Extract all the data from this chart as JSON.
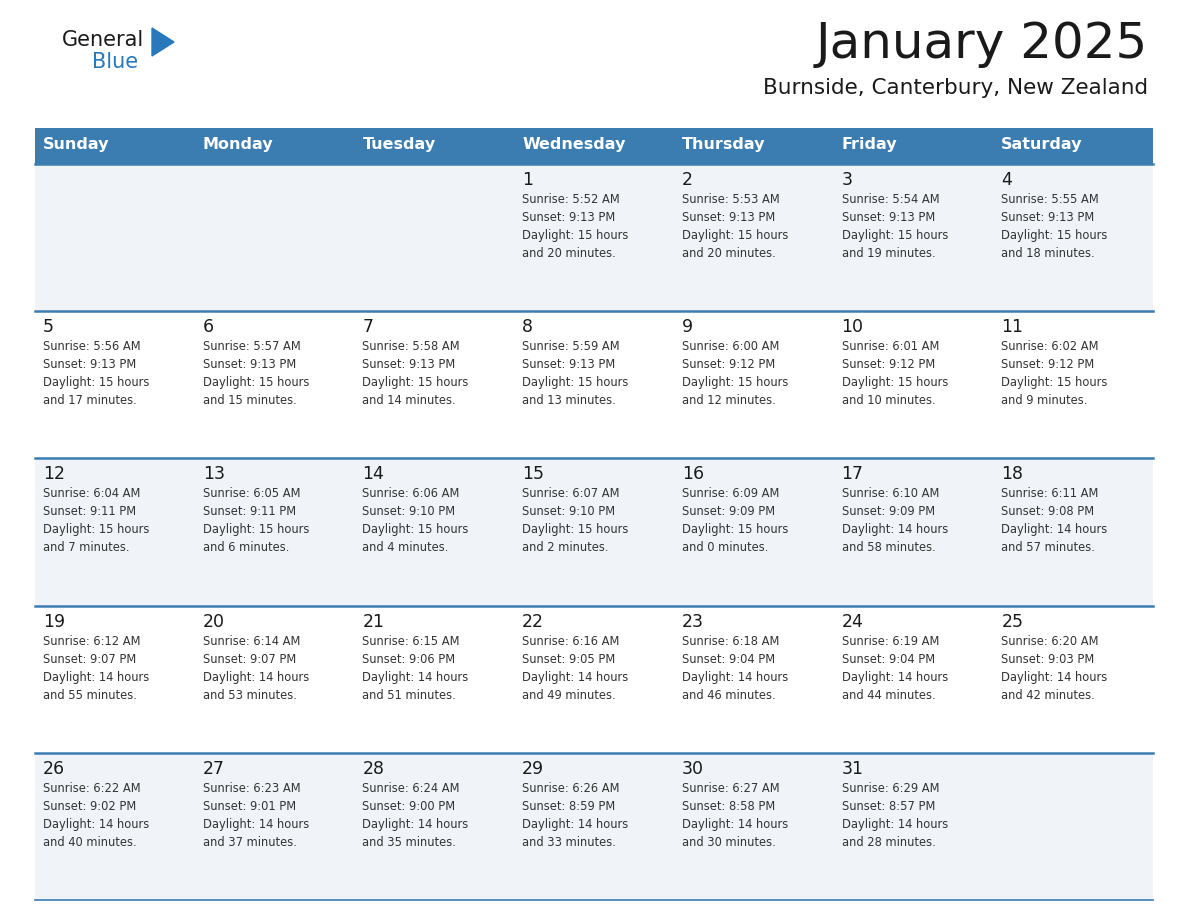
{
  "title": "January 2025",
  "subtitle": "Burnside, Canterbury, New Zealand",
  "days_of_week": [
    "Sunday",
    "Monday",
    "Tuesday",
    "Wednesday",
    "Thursday",
    "Friday",
    "Saturday"
  ],
  "header_bg": "#3c7db1",
  "header_text": "#ffffff",
  "row_bg_even": "#f0f4f8",
  "row_bg_odd": "#ffffff",
  "cell_text_color": "#333333",
  "day_num_color": "#1a1a1a",
  "border_color": "#3c7db1",
  "logo_general_color": "#1a1a1a",
  "logo_blue_color": "#2878be",
  "calendar_data": [
    [
      {
        "day": null,
        "info": null
      },
      {
        "day": null,
        "info": null
      },
      {
        "day": null,
        "info": null
      },
      {
        "day": "1",
        "info": "Sunrise: 5:52 AM\nSunset: 9:13 PM\nDaylight: 15 hours\nand 20 minutes."
      },
      {
        "day": "2",
        "info": "Sunrise: 5:53 AM\nSunset: 9:13 PM\nDaylight: 15 hours\nand 20 minutes."
      },
      {
        "day": "3",
        "info": "Sunrise: 5:54 AM\nSunset: 9:13 PM\nDaylight: 15 hours\nand 19 minutes."
      },
      {
        "day": "4",
        "info": "Sunrise: 5:55 AM\nSunset: 9:13 PM\nDaylight: 15 hours\nand 18 minutes."
      }
    ],
    [
      {
        "day": "5",
        "info": "Sunrise: 5:56 AM\nSunset: 9:13 PM\nDaylight: 15 hours\nand 17 minutes."
      },
      {
        "day": "6",
        "info": "Sunrise: 5:57 AM\nSunset: 9:13 PM\nDaylight: 15 hours\nand 15 minutes."
      },
      {
        "day": "7",
        "info": "Sunrise: 5:58 AM\nSunset: 9:13 PM\nDaylight: 15 hours\nand 14 minutes."
      },
      {
        "day": "8",
        "info": "Sunrise: 5:59 AM\nSunset: 9:13 PM\nDaylight: 15 hours\nand 13 minutes."
      },
      {
        "day": "9",
        "info": "Sunrise: 6:00 AM\nSunset: 9:12 PM\nDaylight: 15 hours\nand 12 minutes."
      },
      {
        "day": "10",
        "info": "Sunrise: 6:01 AM\nSunset: 9:12 PM\nDaylight: 15 hours\nand 10 minutes."
      },
      {
        "day": "11",
        "info": "Sunrise: 6:02 AM\nSunset: 9:12 PM\nDaylight: 15 hours\nand 9 minutes."
      }
    ],
    [
      {
        "day": "12",
        "info": "Sunrise: 6:04 AM\nSunset: 9:11 PM\nDaylight: 15 hours\nand 7 minutes."
      },
      {
        "day": "13",
        "info": "Sunrise: 6:05 AM\nSunset: 9:11 PM\nDaylight: 15 hours\nand 6 minutes."
      },
      {
        "day": "14",
        "info": "Sunrise: 6:06 AM\nSunset: 9:10 PM\nDaylight: 15 hours\nand 4 minutes."
      },
      {
        "day": "15",
        "info": "Sunrise: 6:07 AM\nSunset: 9:10 PM\nDaylight: 15 hours\nand 2 minutes."
      },
      {
        "day": "16",
        "info": "Sunrise: 6:09 AM\nSunset: 9:09 PM\nDaylight: 15 hours\nand 0 minutes."
      },
      {
        "day": "17",
        "info": "Sunrise: 6:10 AM\nSunset: 9:09 PM\nDaylight: 14 hours\nand 58 minutes."
      },
      {
        "day": "18",
        "info": "Sunrise: 6:11 AM\nSunset: 9:08 PM\nDaylight: 14 hours\nand 57 minutes."
      }
    ],
    [
      {
        "day": "19",
        "info": "Sunrise: 6:12 AM\nSunset: 9:07 PM\nDaylight: 14 hours\nand 55 minutes."
      },
      {
        "day": "20",
        "info": "Sunrise: 6:14 AM\nSunset: 9:07 PM\nDaylight: 14 hours\nand 53 minutes."
      },
      {
        "day": "21",
        "info": "Sunrise: 6:15 AM\nSunset: 9:06 PM\nDaylight: 14 hours\nand 51 minutes."
      },
      {
        "day": "22",
        "info": "Sunrise: 6:16 AM\nSunset: 9:05 PM\nDaylight: 14 hours\nand 49 minutes."
      },
      {
        "day": "23",
        "info": "Sunrise: 6:18 AM\nSunset: 9:04 PM\nDaylight: 14 hours\nand 46 minutes."
      },
      {
        "day": "24",
        "info": "Sunrise: 6:19 AM\nSunset: 9:04 PM\nDaylight: 14 hours\nand 44 minutes."
      },
      {
        "day": "25",
        "info": "Sunrise: 6:20 AM\nSunset: 9:03 PM\nDaylight: 14 hours\nand 42 minutes."
      }
    ],
    [
      {
        "day": "26",
        "info": "Sunrise: 6:22 AM\nSunset: 9:02 PM\nDaylight: 14 hours\nand 40 minutes."
      },
      {
        "day": "27",
        "info": "Sunrise: 6:23 AM\nSunset: 9:01 PM\nDaylight: 14 hours\nand 37 minutes."
      },
      {
        "day": "28",
        "info": "Sunrise: 6:24 AM\nSunset: 9:00 PM\nDaylight: 14 hours\nand 35 minutes."
      },
      {
        "day": "29",
        "info": "Sunrise: 6:26 AM\nSunset: 8:59 PM\nDaylight: 14 hours\nand 33 minutes."
      },
      {
        "day": "30",
        "info": "Sunrise: 6:27 AM\nSunset: 8:58 PM\nDaylight: 14 hours\nand 30 minutes."
      },
      {
        "day": "31",
        "info": "Sunrise: 6:29 AM\nSunset: 8:57 PM\nDaylight: 14 hours\nand 28 minutes."
      },
      {
        "day": null,
        "info": null
      }
    ]
  ],
  "fig_width": 11.88,
  "fig_height": 9.18,
  "dpi": 100
}
